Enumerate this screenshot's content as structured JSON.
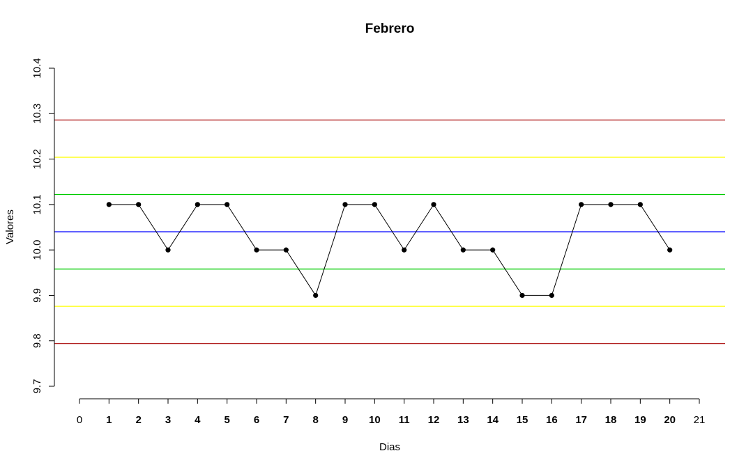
{
  "chart_data": {
    "type": "line",
    "title": "Febrero",
    "xlabel": "Dias",
    "ylabel": "Valores",
    "xlim": [
      0,
      21
    ],
    "ylim": [
      9.7,
      10.4
    ],
    "x_ticks": [
      "0",
      "1",
      "2",
      "3",
      "4",
      "5",
      "6",
      "7",
      "8",
      "9",
      "10",
      "11",
      "12",
      "13",
      "14",
      "15",
      "16",
      "17",
      "18",
      "19",
      "20",
      "21"
    ],
    "x_ticks_bold": [
      "1",
      "2",
      "3",
      "4",
      "5",
      "6",
      "7",
      "8",
      "9",
      "10",
      "11",
      "12",
      "13",
      "14",
      "15",
      "16",
      "17",
      "18",
      "19",
      "20"
    ],
    "y_ticks": [
      "9.7",
      "9.8",
      "9.9",
      "10.0",
      "10.1",
      "10.2",
      "10.3",
      "10.4"
    ],
    "grid": false,
    "series": [
      {
        "color": "#000000",
        "x": [
          1,
          2,
          3,
          4,
          5,
          6,
          7,
          8,
          9,
          10,
          11,
          12,
          13,
          14,
          15,
          16,
          17,
          18,
          19,
          20
        ],
        "values": [
          10.1,
          10.1,
          10.0,
          10.1,
          10.1,
          10.0,
          10.0,
          9.9,
          10.1,
          10.1,
          10.0,
          10.1,
          10.0,
          10.0,
          9.9,
          9.9,
          10.1,
          10.1,
          10.1,
          10.0
        ]
      }
    ],
    "reference_lines": [
      {
        "value": 10.286,
        "color": "#b22222"
      },
      {
        "value": 10.204,
        "color": "#ffff00"
      },
      {
        "value": 10.122,
        "color": "#00cc00"
      },
      {
        "value": 10.04,
        "color": "#0000ff"
      },
      {
        "value": 9.958,
        "color": "#00cc00"
      },
      {
        "value": 9.876,
        "color": "#ffff00"
      },
      {
        "value": 9.794,
        "color": "#b22222"
      }
    ]
  }
}
